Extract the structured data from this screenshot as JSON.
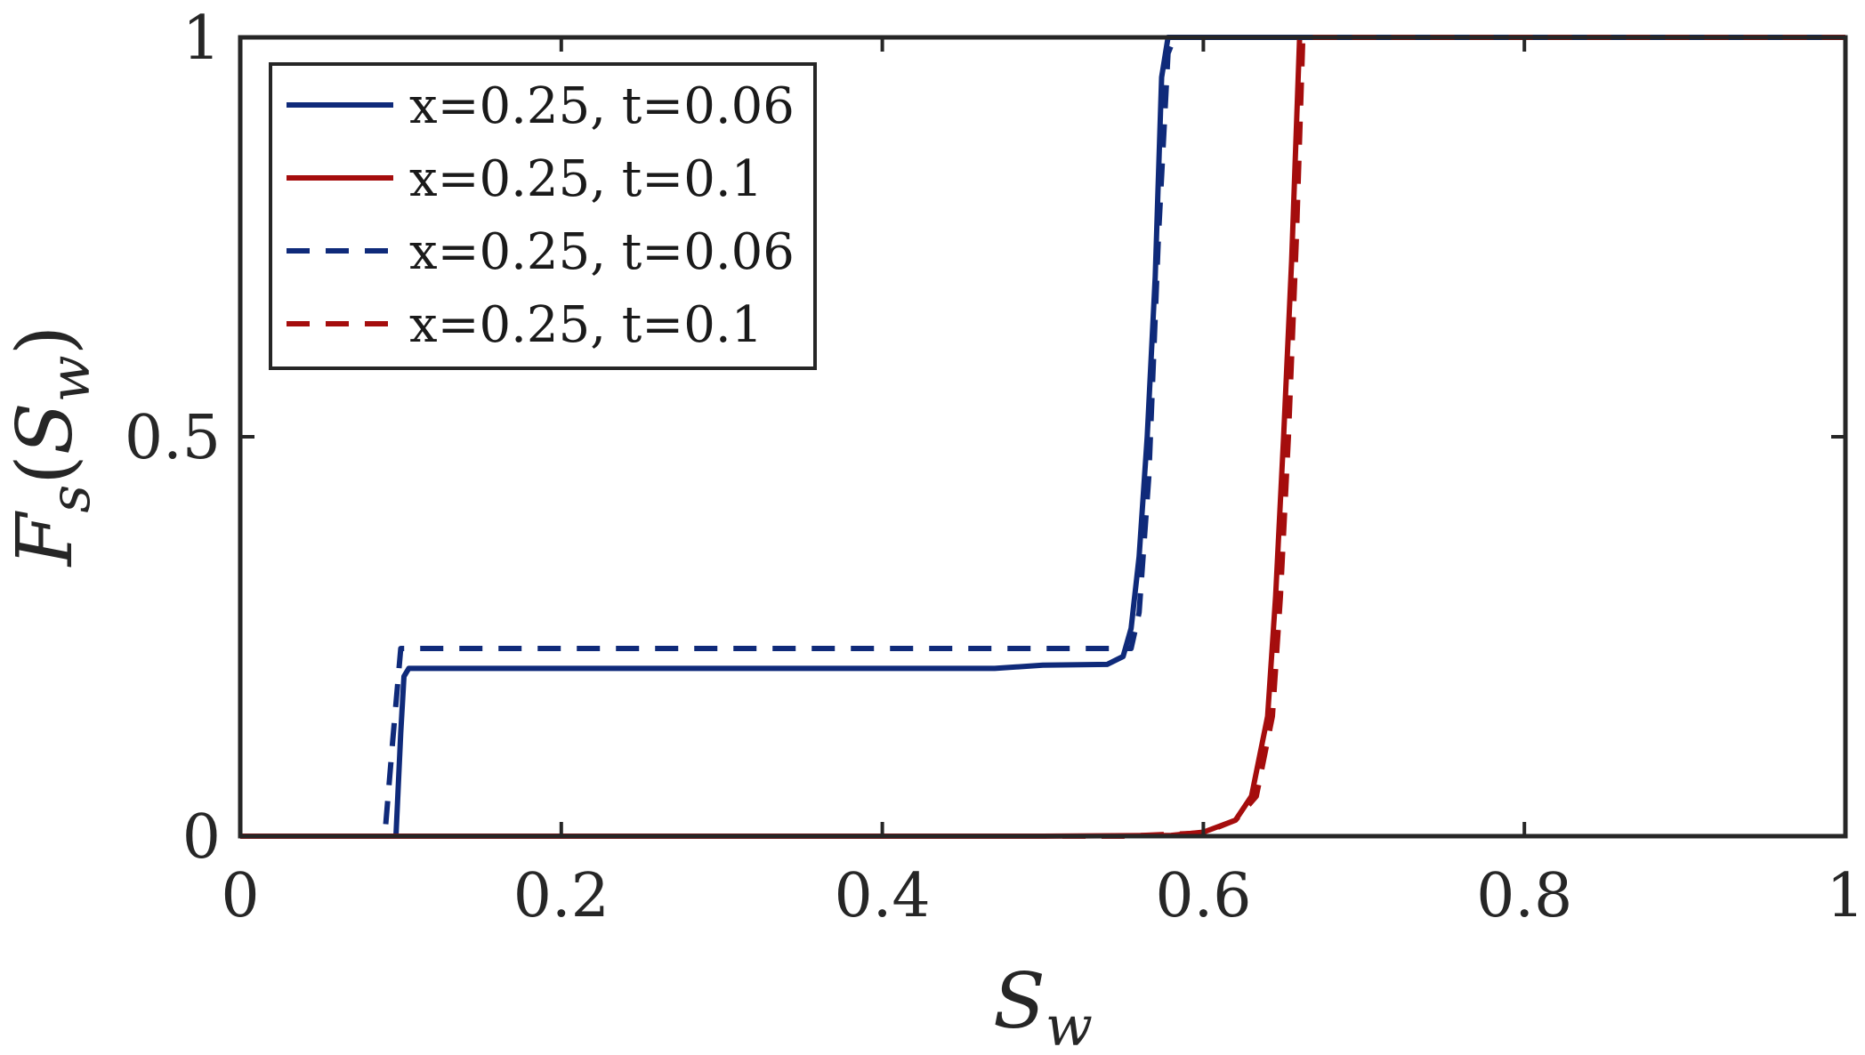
{
  "chart_data": {
    "type": "line",
    "title": "",
    "xlabel": "S_w",
    "ylabel": "F_s(S_w)",
    "xlim": [
      0,
      1
    ],
    "ylim": [
      0,
      1
    ],
    "grid": false,
    "legend_position": "top-left",
    "x_ticks": [
      {
        "value": 0,
        "label": "0"
      },
      {
        "value": 0.2,
        "label": "0.2"
      },
      {
        "value": 0.4,
        "label": "0.4"
      },
      {
        "value": 0.6,
        "label": "0.6"
      },
      {
        "value": 0.8,
        "label": "0.8"
      },
      {
        "value": 1,
        "label": "1"
      }
    ],
    "y_ticks": [
      {
        "value": 0,
        "label": "0"
      },
      {
        "value": 0.5,
        "label": "0.5"
      },
      {
        "value": 1,
        "label": "1"
      }
    ],
    "series": [
      {
        "name": "x=0.25, t=0.06",
        "color": "#0f2a7a",
        "dash": "solid",
        "points": [
          [
            0,
            0
          ],
          [
            0.097,
            0
          ],
          [
            0.1,
            0.13
          ],
          [
            0.102,
            0.2
          ],
          [
            0.105,
            0.21
          ],
          [
            0.2,
            0.21
          ],
          [
            0.3,
            0.21
          ],
          [
            0.4,
            0.21
          ],
          [
            0.47,
            0.21
          ],
          [
            0.5,
            0.214
          ],
          [
            0.54,
            0.215
          ],
          [
            0.55,
            0.225
          ],
          [
            0.555,
            0.26
          ],
          [
            0.56,
            0.35
          ],
          [
            0.565,
            0.5
          ],
          [
            0.57,
            0.7
          ],
          [
            0.574,
            0.95
          ],
          [
            0.578,
            1
          ],
          [
            0.6,
            1
          ],
          [
            0.8,
            1
          ],
          [
            1,
            1
          ]
        ]
      },
      {
        "name": "x=0.25, t=0.1",
        "color": "#a50d0d",
        "dash": "solid",
        "points": [
          [
            0,
            0
          ],
          [
            0.5,
            0
          ],
          [
            0.58,
            0.001
          ],
          [
            0.6,
            0.005
          ],
          [
            0.62,
            0.02
          ],
          [
            0.63,
            0.05
          ],
          [
            0.64,
            0.15
          ],
          [
            0.645,
            0.3
          ],
          [
            0.65,
            0.5
          ],
          [
            0.655,
            0.72
          ],
          [
            0.66,
            1
          ],
          [
            0.7,
            1
          ],
          [
            0.8,
            1
          ],
          [
            1,
            1
          ]
        ]
      },
      {
        "name": "x=0.25, t=0.06",
        "color": "#0f2a7a",
        "dash": "dashed",
        "points": [
          [
            0,
            0
          ],
          [
            0.09,
            0
          ],
          [
            0.095,
            0.12
          ],
          [
            0.1,
            0.235
          ],
          [
            0.2,
            0.235
          ],
          [
            0.3,
            0.235
          ],
          [
            0.4,
            0.235
          ],
          [
            0.5,
            0.235
          ],
          [
            0.555,
            0.235
          ],
          [
            0.56,
            0.28
          ],
          [
            0.566,
            0.45
          ],
          [
            0.572,
            0.75
          ],
          [
            0.578,
            0.98
          ],
          [
            0.582,
            1
          ],
          [
            0.6,
            1
          ],
          [
            0.8,
            1
          ],
          [
            1,
            1
          ]
        ]
      },
      {
        "name": "x=0.25, t=0.1",
        "color": "#a50d0d",
        "dash": "dashed",
        "points": [
          [
            0,
            0
          ],
          [
            0.55,
            0
          ],
          [
            0.6,
            0.004
          ],
          [
            0.62,
            0.02
          ],
          [
            0.633,
            0.05
          ],
          [
            0.643,
            0.15
          ],
          [
            0.648,
            0.3
          ],
          [
            0.653,
            0.5
          ],
          [
            0.658,
            0.75
          ],
          [
            0.662,
            1
          ],
          [
            0.7,
            1
          ],
          [
            0.8,
            1
          ],
          [
            1,
            1
          ]
        ]
      }
    ]
  }
}
